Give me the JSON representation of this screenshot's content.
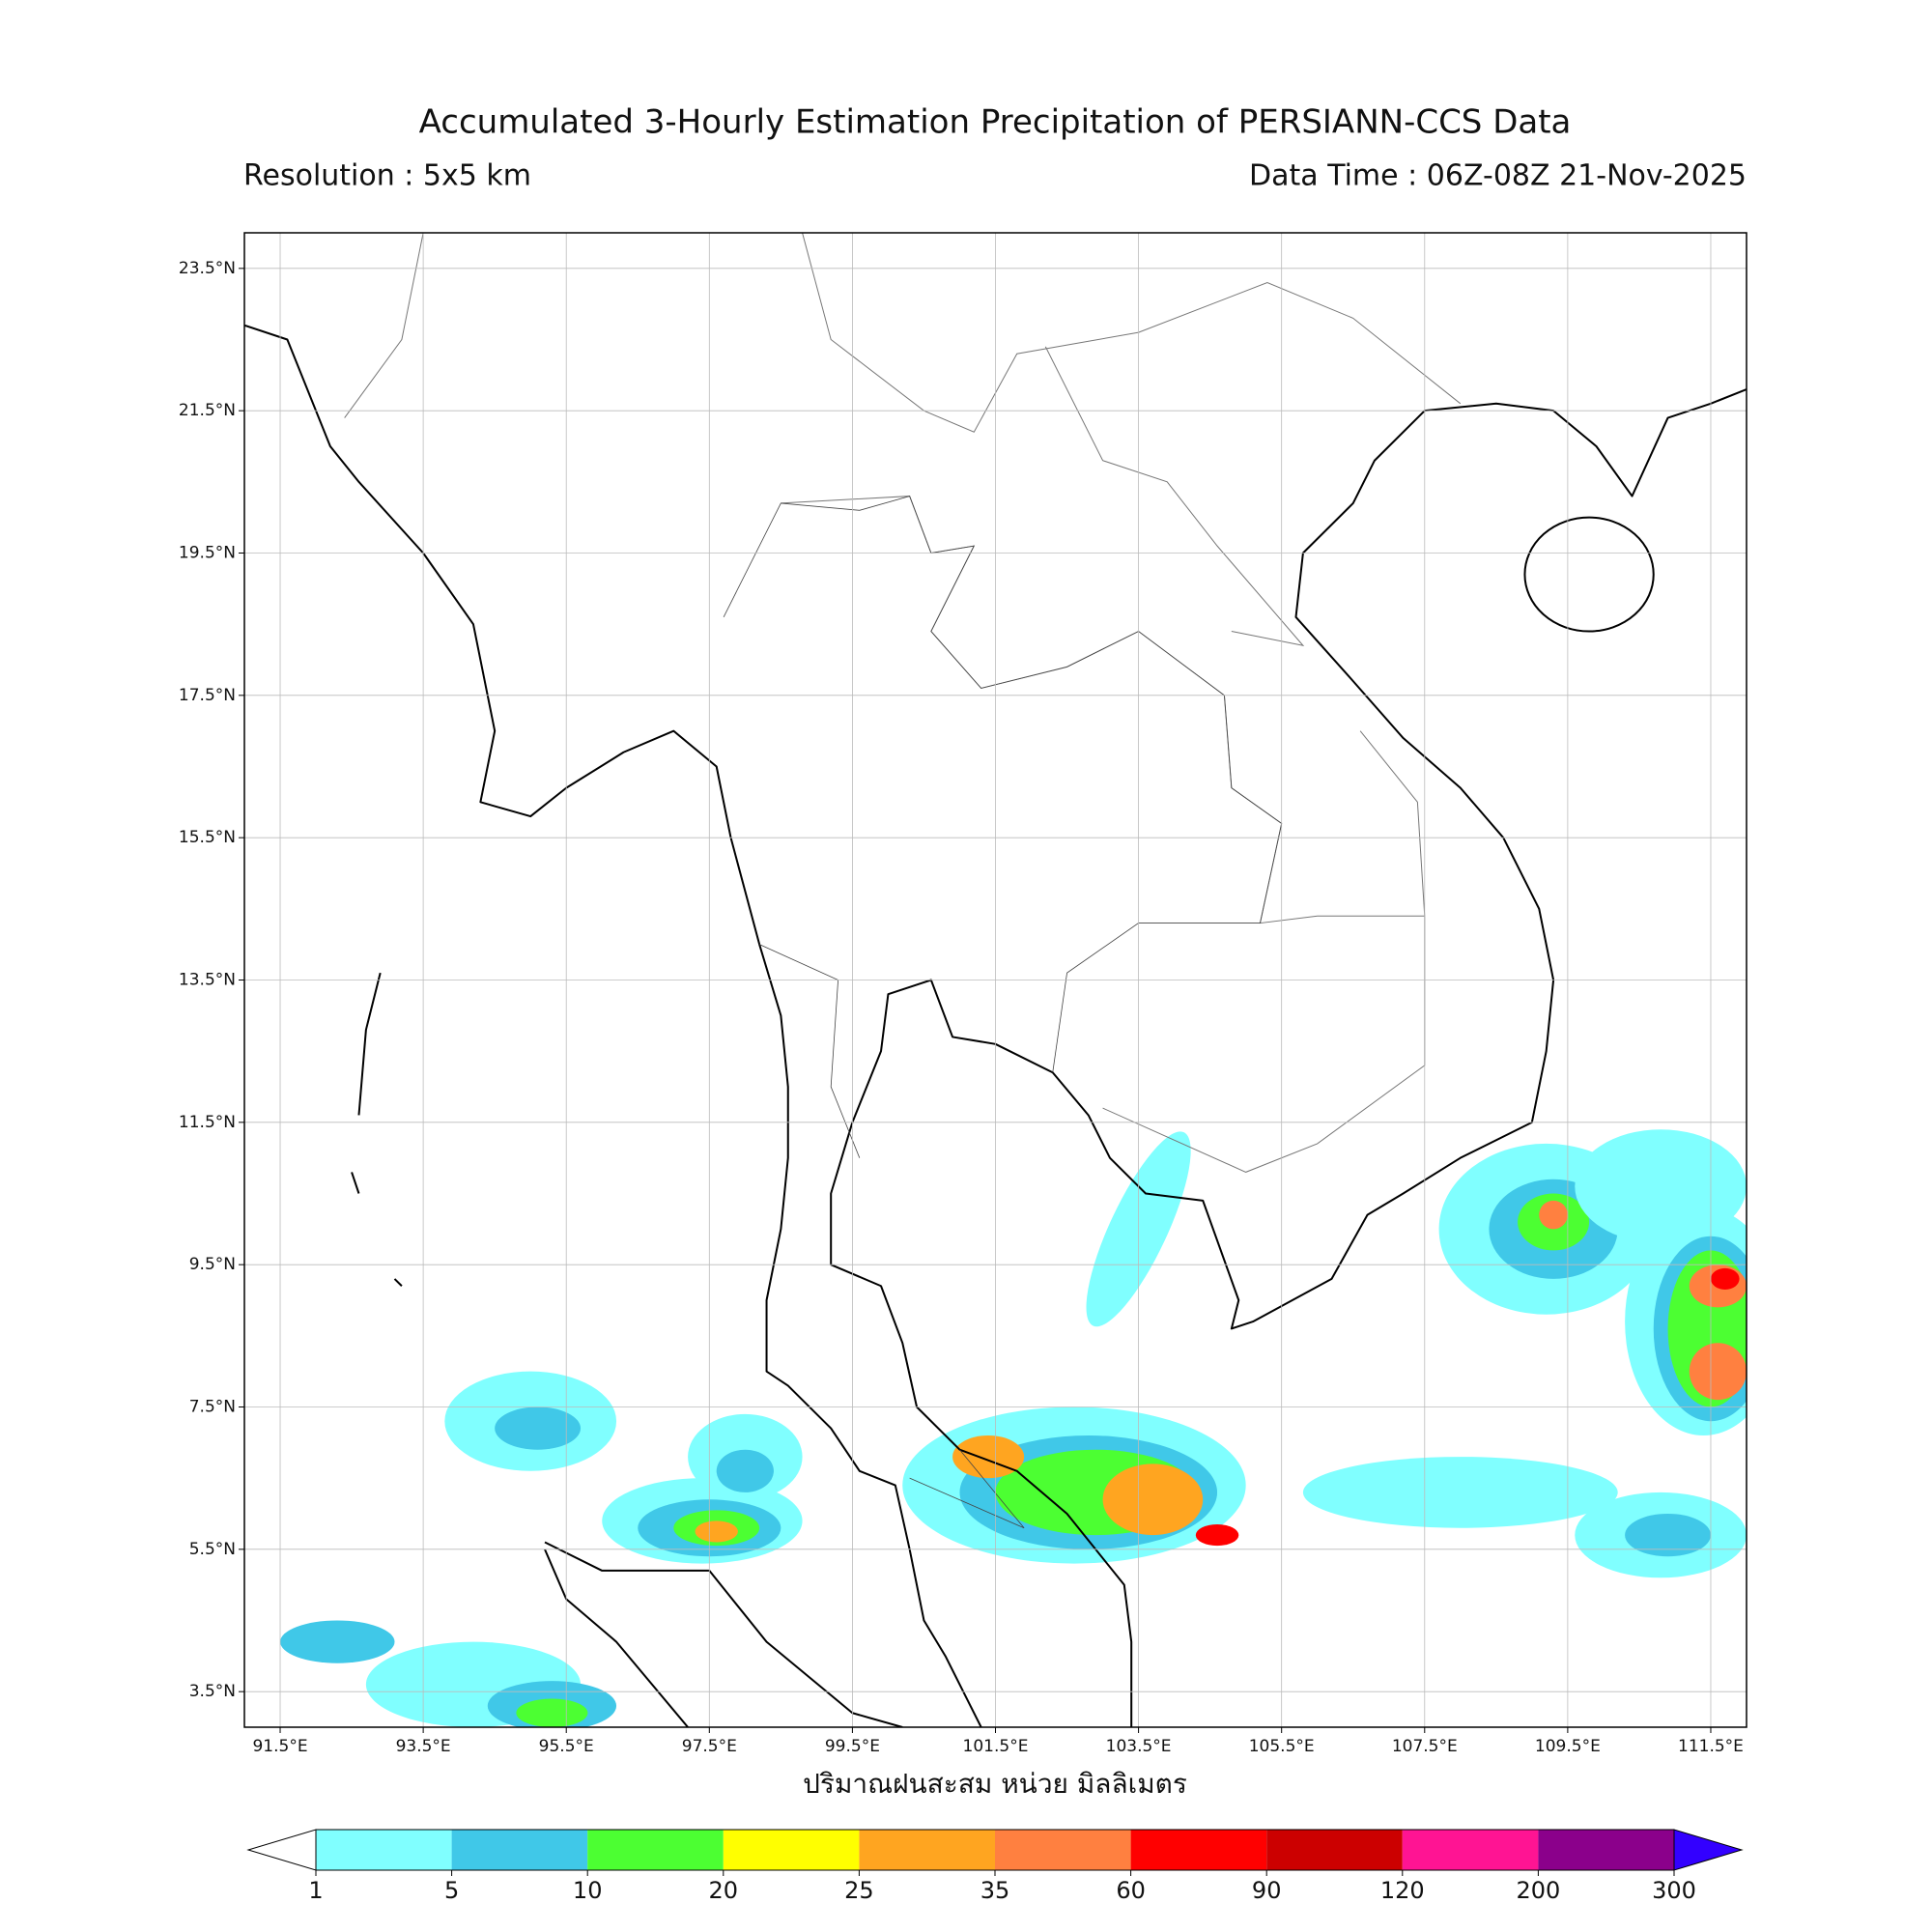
{
  "title": "Accumulated 3-Hourly Estimation Precipitation of PERSIANN-CCS Data",
  "resolution": "Resolution : 5x5 km",
  "data_time": "Data Time : 06Z-08Z 21-Nov-2025",
  "map": {
    "xlim": [
      91,
      112
    ],
    "ylim": [
      3,
      24
    ],
    "grid": true,
    "xticks": [
      {
        "value": 91.5,
        "label": "91.5°E"
      },
      {
        "value": 93.5,
        "label": "93.5°E"
      },
      {
        "value": 95.5,
        "label": "95.5°E"
      },
      {
        "value": 97.5,
        "label": "97.5°E"
      },
      {
        "value": 99.5,
        "label": "99.5°E"
      },
      {
        "value": 101.5,
        "label": "101.5°E"
      },
      {
        "value": 103.5,
        "label": "103.5°E"
      },
      {
        "value": 105.5,
        "label": "105.5°E"
      },
      {
        "value": 107.5,
        "label": "107.5°E"
      },
      {
        "value": 109.5,
        "label": "109.5°E"
      },
      {
        "value": 111.5,
        "label": "111.5°E"
      }
    ],
    "yticks": [
      {
        "value": 3.5,
        "label": "3.5°N"
      },
      {
        "value": 5.5,
        "label": "5.5°N"
      },
      {
        "value": 7.5,
        "label": "7.5°N"
      },
      {
        "value": 9.5,
        "label": "9.5°N"
      },
      {
        "value": 11.5,
        "label": "11.5°N"
      },
      {
        "value": 13.5,
        "label": "13.5°N"
      },
      {
        "value": 15.5,
        "label": "15.5°N"
      },
      {
        "value": 17.5,
        "label": "17.5°N"
      },
      {
        "value": 19.5,
        "label": "19.5°N"
      },
      {
        "value": 21.5,
        "label": "21.5°N"
      },
      {
        "value": 23.5,
        "label": "23.5°N"
      }
    ]
  },
  "colorbar": {
    "label": "ปริมาณฝนสะสม หน่วย มิลลิเมตร",
    "levels": [
      1,
      5,
      10,
      20,
      25,
      35,
      60,
      90,
      120,
      200,
      300
    ],
    "colors": [
      "#80ffff",
      "#40c8e8",
      "#4cff32",
      "#ffff00",
      "#ffa520",
      "#ff8040",
      "#ff0000",
      "#cc0000",
      "#ff1493",
      "#8b008b"
    ],
    "under_color": "#ffffff",
    "over_color": "#3300ff"
  }
}
